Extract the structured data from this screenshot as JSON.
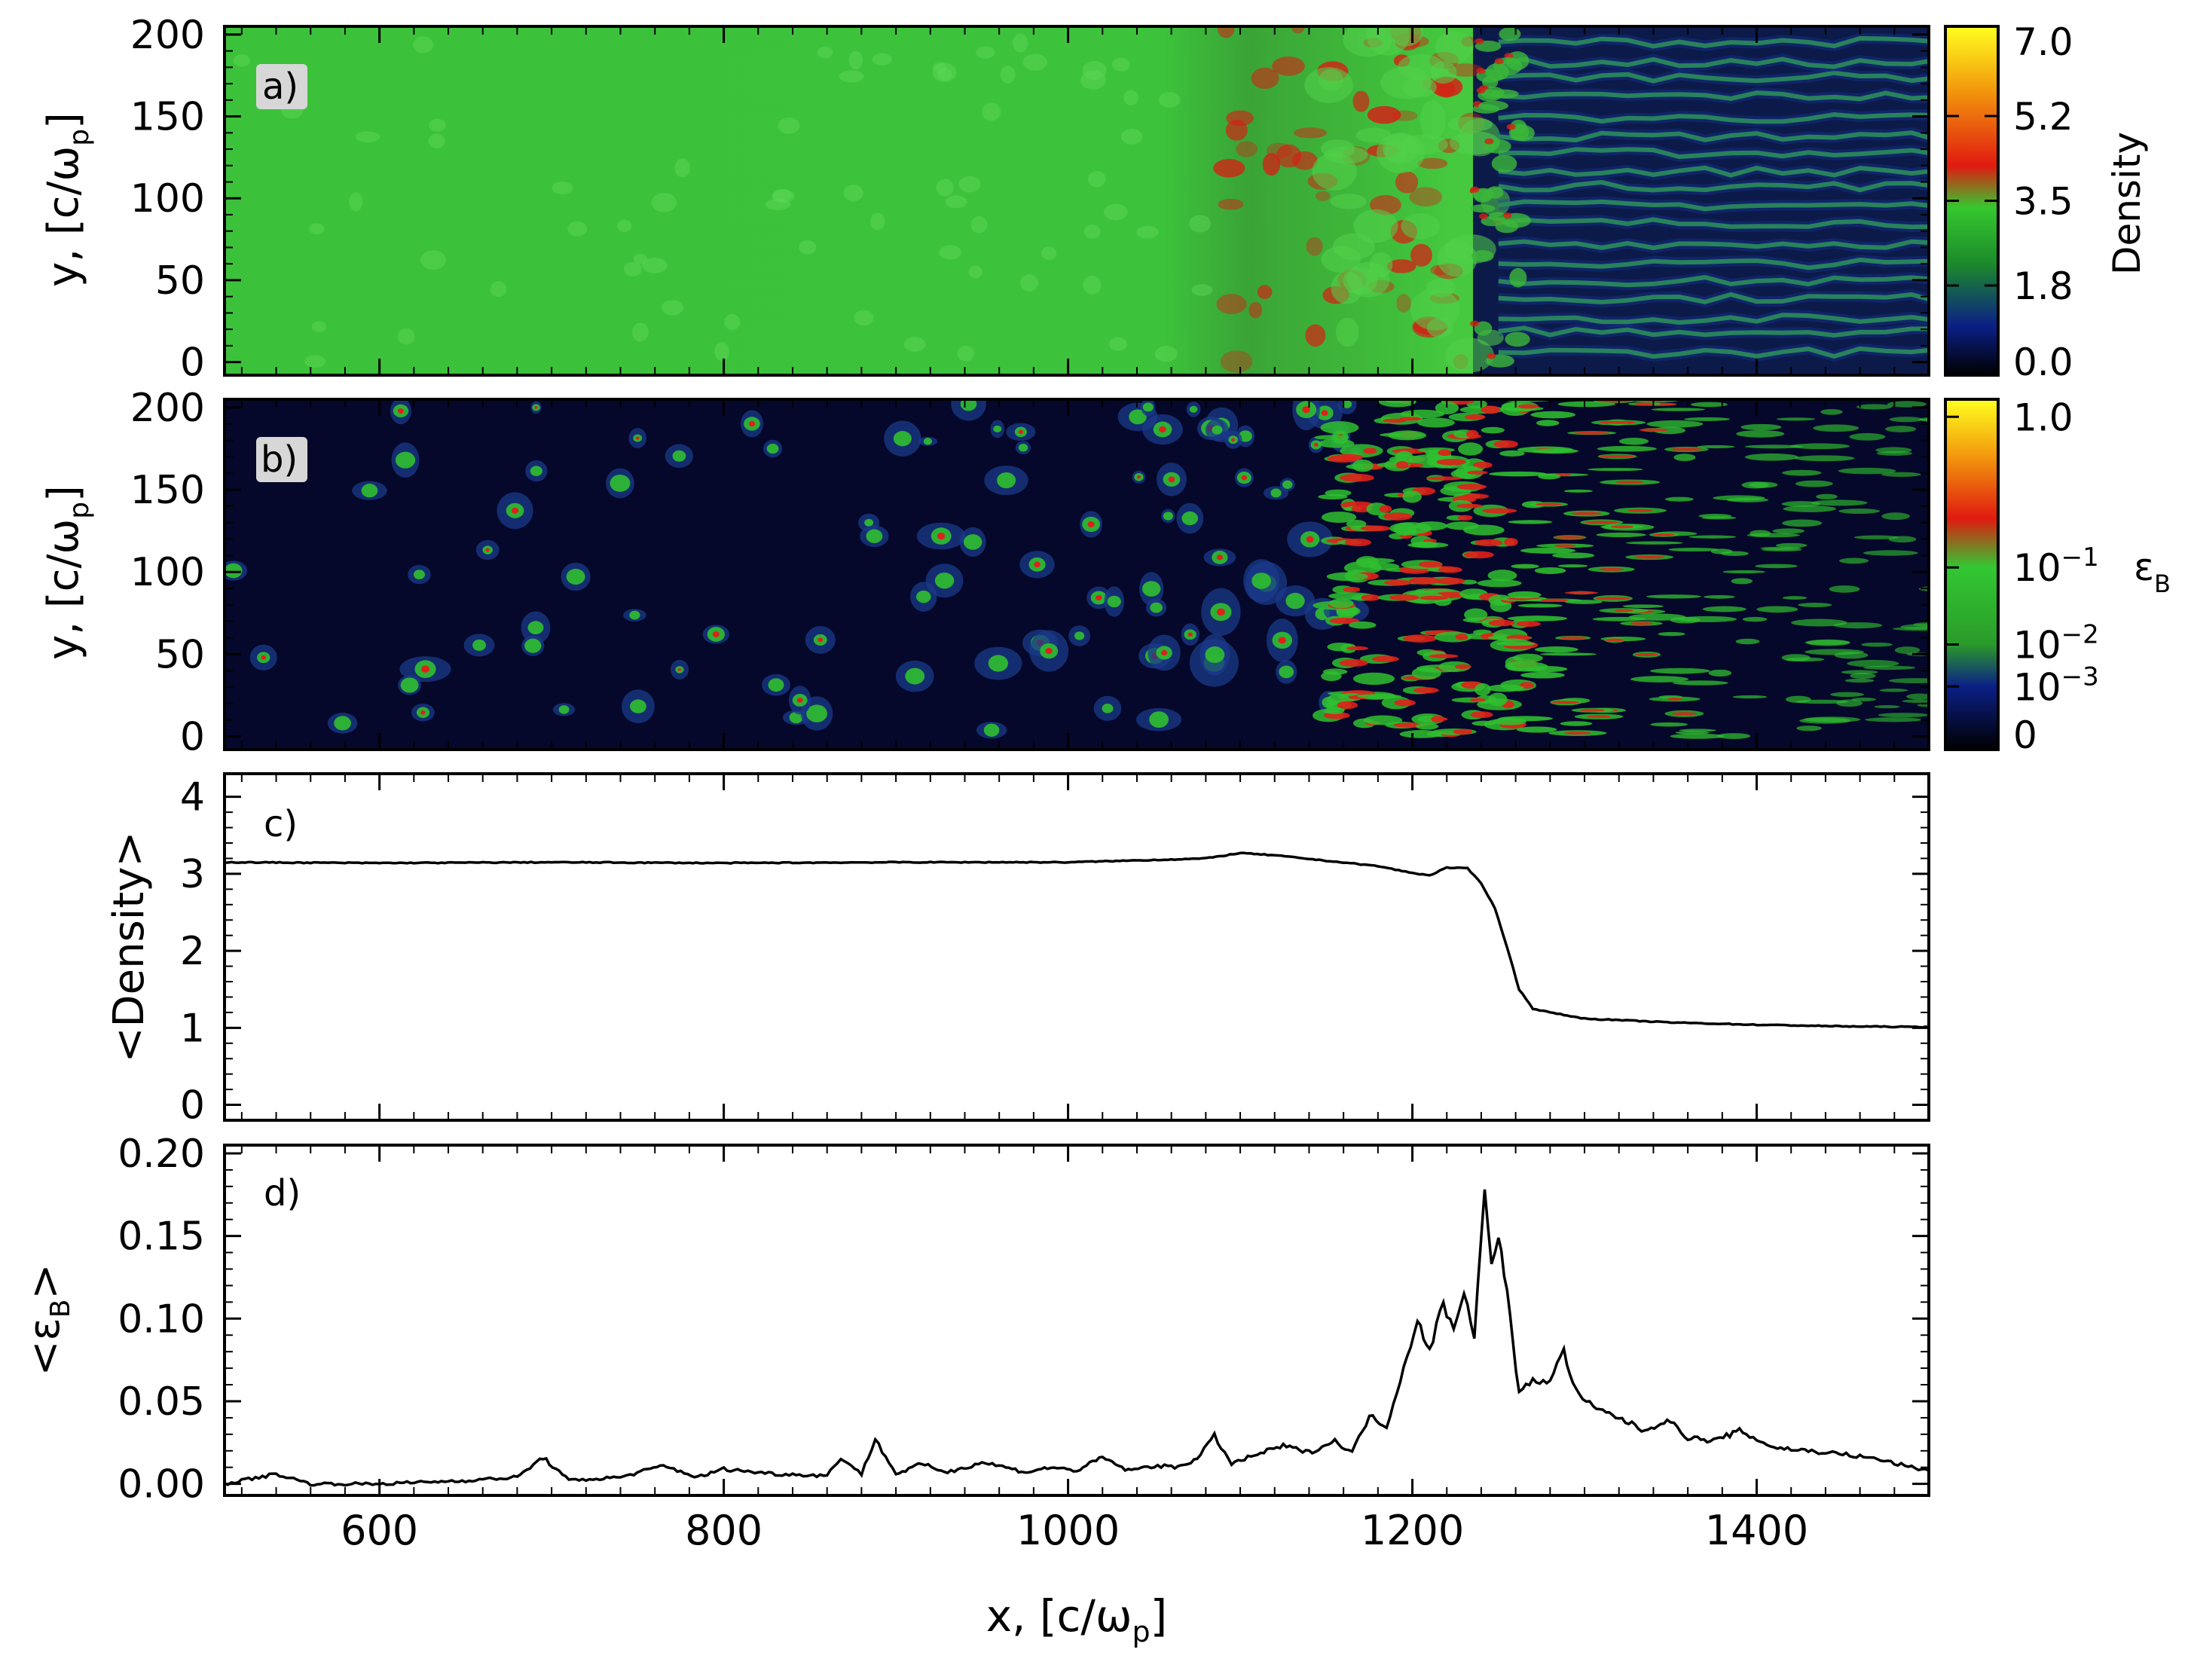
{
  "figure": {
    "x_axis": {
      "label": "x,  [c/ω",
      "label_sub": "p",
      "label_close": "]",
      "range": [
        510,
        1500
      ],
      "ticks": [
        600,
        800,
        1000,
        1200,
        1400
      ],
      "tick_labels": [
        "600",
        "800",
        "1000",
        "1200",
        "1400"
      ]
    },
    "y_label_panels_ab": {
      "main": "y,  [c/ω",
      "sub": "p",
      "close": "]"
    }
  },
  "chart_data": [
    {
      "id": "a",
      "panel_label": "a)",
      "type": "heatmap",
      "xlim": [
        510,
        1500
      ],
      "ylim": [
        -8,
        205
      ],
      "yticks": [
        0,
        50,
        100,
        150,
        200
      ],
      "ytick_labels": [
        "0",
        "50",
        "100",
        "150",
        "200"
      ],
      "colorbar": {
        "label": "Density",
        "range": [
          0.0,
          7.0
        ],
        "ticks": [
          0.0,
          1.8,
          3.5,
          5.2,
          7.0
        ],
        "tick_labels": [
          "0.0",
          "1.8",
          "3.5",
          "5.2",
          "7.0"
        ],
        "colors": [
          "#000000",
          "#0b1f86",
          "#1c8a2a",
          "#35c82f",
          "#e01a10",
          "#f39a0c",
          "#ffff20"
        ]
      },
      "colors": {
        "downstream": "#3cc23a",
        "upstream_bg": "#0c1a4a",
        "filament": "#34b934",
        "hot": "#d42015"
      }
    },
    {
      "id": "b",
      "panel_label": "b)",
      "type": "heatmap",
      "xlim": [
        510,
        1500
      ],
      "ylim": [
        -8,
        205
      ],
      "yticks": [
        0,
        50,
        100,
        150,
        200
      ],
      "ytick_labels": [
        "0",
        "50",
        "100",
        "150",
        "200"
      ],
      "colorbar": {
        "label": "ε",
        "label_sub": "B",
        "ticks": [
          "0",
          "10^-3",
          "10^-2",
          "10^-1",
          "1.0"
        ],
        "tick_labels": [
          {
            "base": "0",
            "exp": ""
          },
          {
            "base": "10",
            "exp": "−3"
          },
          {
            "base": "10",
            "exp": "−2"
          },
          {
            "base": "10",
            "exp": "−1"
          },
          {
            "base": "1.0",
            "exp": ""
          }
        ],
        "colors": [
          "#000000",
          "#0b1f86",
          "#2a9a2a",
          "#32c832",
          "#e01a10",
          "#f39a0c",
          "#ffff20"
        ]
      },
      "colors": {
        "background": "#05082a",
        "blob": "#2fbf2f",
        "core": "#e0201a"
      }
    },
    {
      "id": "c",
      "panel_label": "c)",
      "type": "line",
      "ylabel": "<Density>",
      "xlim": [
        510,
        1500
      ],
      "ylim": [
        -0.2,
        4.3
      ],
      "yticks": [
        0,
        1,
        2,
        3,
        4
      ],
      "ytick_labels": [
        "0",
        "1",
        "2",
        "3",
        "4"
      ],
      "series": [
        {
          "x": [
            510,
            600,
            700,
            800,
            900,
            1000,
            1050,
            1080,
            1100,
            1120,
            1150,
            1180,
            1200,
            1210,
            1220,
            1232,
            1240,
            1248,
            1255,
            1262,
            1270,
            1280,
            1300,
            1350,
            1400,
            1450,
            1500
          ],
          "y": [
            3.15,
            3.14,
            3.15,
            3.14,
            3.15,
            3.15,
            3.18,
            3.2,
            3.27,
            3.24,
            3.17,
            3.1,
            3.01,
            2.98,
            3.08,
            3.07,
            2.88,
            2.55,
            2.05,
            1.5,
            1.25,
            1.2,
            1.12,
            1.07,
            1.04,
            1.02,
            1.01
          ]
        }
      ]
    },
    {
      "id": "d",
      "panel_label": "d)",
      "type": "line",
      "ylabel": "<ε",
      "ylabel_sub": "B",
      "ylabel_close": ">",
      "xlim": [
        510,
        1500
      ],
      "ylim": [
        -0.007,
        0.205
      ],
      "yticks": [
        0.0,
        0.05,
        0.1,
        0.15,
        0.2
      ],
      "ytick_labels": [
        "0.00",
        "0.05",
        "0.10",
        "0.15",
        "0.20"
      ],
      "series": [
        {
          "x": [
            510,
            540,
            560,
            600,
            650,
            680,
            695,
            710,
            740,
            765,
            785,
            800,
            830,
            860,
            868,
            880,
            888,
            900,
            915,
            930,
            950,
            960,
            975,
            990,
            1005,
            1020,
            1035,
            1050,
            1062,
            1075,
            1085,
            1095,
            1110,
            1125,
            1140,
            1155,
            1165,
            1175,
            1185,
            1195,
            1203,
            1210,
            1218,
            1224,
            1230,
            1236,
            1242,
            1246,
            1250,
            1255,
            1262,
            1270,
            1280,
            1288,
            1295,
            1305,
            1320,
            1335,
            1348,
            1360,
            1375,
            1390,
            1410,
            1430,
            1450,
            1470,
            1490,
            1500
          ],
          "y": [
            0.0,
            0.006,
            0.0,
            0.0,
            0.002,
            0.004,
            0.016,
            0.002,
            0.004,
            0.011,
            0.004,
            0.009,
            0.006,
            0.005,
            0.016,
            0.006,
            0.027,
            0.006,
            0.012,
            0.007,
            0.013,
            0.011,
            0.007,
            0.01,
            0.008,
            0.016,
            0.008,
            0.011,
            0.01,
            0.015,
            0.029,
            0.012,
            0.018,
            0.023,
            0.019,
            0.026,
            0.019,
            0.041,
            0.035,
            0.07,
            0.1,
            0.08,
            0.11,
            0.092,
            0.118,
            0.09,
            0.177,
            0.13,
            0.153,
            0.115,
            0.055,
            0.062,
            0.063,
            0.08,
            0.056,
            0.046,
            0.04,
            0.032,
            0.039,
            0.028,
            0.026,
            0.032,
            0.022,
            0.02,
            0.018,
            0.015,
            0.01,
            0.008
          ]
        }
      ]
    }
  ]
}
